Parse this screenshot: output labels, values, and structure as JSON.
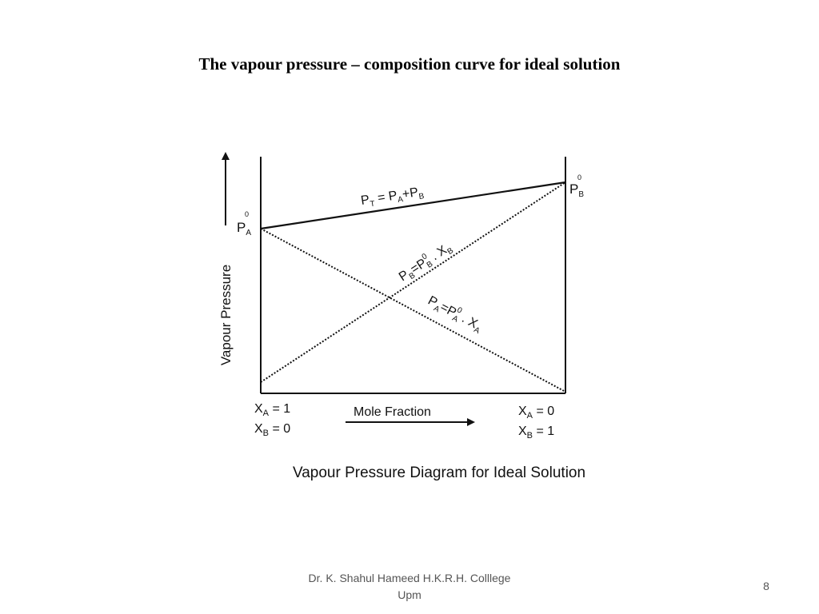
{
  "slide": {
    "title": "The vapour pressure – composition curve for ideal solution",
    "footer_line1": "Dr. K. Shahul Hameed H.K.R.H. Colllege",
    "footer_line2": "Upm",
    "page_number": "8"
  },
  "diagram": {
    "y_axis_label": "Vapour Pressure",
    "x_axis_label": "Mole Fraction",
    "caption": "Vapour Pressure Diagram for Ideal Solution",
    "left_bottom": {
      "line1": {
        "var": "X",
        "sub": "A",
        "value": " = 1"
      },
      "line2": {
        "var": "X",
        "sub": "B",
        "value": " = 0"
      }
    },
    "right_bottom": {
      "line1": {
        "var": "X",
        "sub": "A",
        "value": " = 0"
      },
      "line2": {
        "var": "X",
        "sub": "B",
        "value": " = 1"
      }
    },
    "pa0": {
      "base": "P",
      "sub": "A",
      "sup": "0"
    },
    "pb0": {
      "base": "P",
      "sub": "B",
      "sup": "0"
    },
    "pt_equation": {
      "p": "P",
      "t_sub": "T",
      "eq": " = ",
      "p2": "P",
      "a_sub": "A",
      "plus": "+P",
      "b_sub": "B"
    },
    "pb_equation": {
      "p": "P",
      "b_sub": "B",
      "eq": "=P",
      "sup": "0",
      "b_sub2": "B",
      "dot": " . X",
      "b_sub3": "B"
    },
    "pa_equation": {
      "p": "P",
      "a_sub": "A",
      "eq": "=P",
      "sup": "0",
      "a_sub2": "A",
      "dot": " . X",
      "a_sub3": "A"
    },
    "line_color": "#111111"
  }
}
